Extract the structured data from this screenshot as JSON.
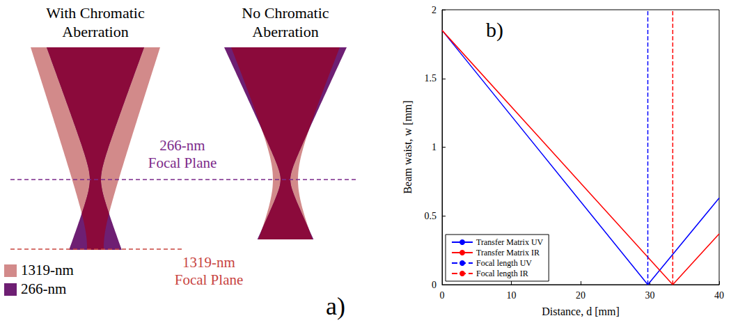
{
  "panel_a": {
    "label": "a)",
    "columns": [
      {
        "title": "With Chromatic Aberration"
      },
      {
        "title": "No Chromatic Aberration"
      }
    ],
    "focal_planes": [
      {
        "label": "266-nm Focal Plane",
        "color": "#7b2a8a"
      },
      {
        "label": "1319-nm Focal Plane",
        "color": "#c8443f"
      }
    ],
    "legend": [
      {
        "name": "1319-nm",
        "color": "#d28a8a"
      },
      {
        "name": "266-nm",
        "color": "#6e1f73"
      }
    ]
  },
  "chart_data": {
    "type": "line",
    "title": "b)",
    "xlabel": "Distance, d [mm]",
    "ylabel": "Beam waist, w [mm]",
    "xlim": [
      0,
      40
    ],
    "xticks": [
      0,
      10,
      20,
      30,
      40
    ],
    "ylim": [
      0,
      2
    ],
    "yticks": [
      0,
      0.5,
      1,
      1.5,
      2
    ],
    "grid": false,
    "legend": "lower left",
    "series": [
      {
        "name": "Transfer Matrix UV",
        "color": "#0000ff",
        "line_style": "solid",
        "x": [
          0,
          29.7,
          40
        ],
        "values": [
          1.85,
          0,
          0.63
        ]
      },
      {
        "name": "Transfer Matrix IR",
        "color": "#ff0000",
        "line_style": "solid",
        "x": [
          0,
          33.3,
          40
        ],
        "values": [
          1.85,
          0,
          0.37
        ]
      },
      {
        "name": "Focal length UV",
        "color": "#0000ff",
        "line_style": "dashed",
        "x": [
          29.7,
          29.7
        ],
        "values": [
          0,
          2
        ]
      },
      {
        "name": "Focal length IR",
        "color": "#ff0000",
        "line_style": "dashed",
        "x": [
          33.3,
          33.3
        ],
        "values": [
          0,
          2
        ]
      }
    ]
  }
}
